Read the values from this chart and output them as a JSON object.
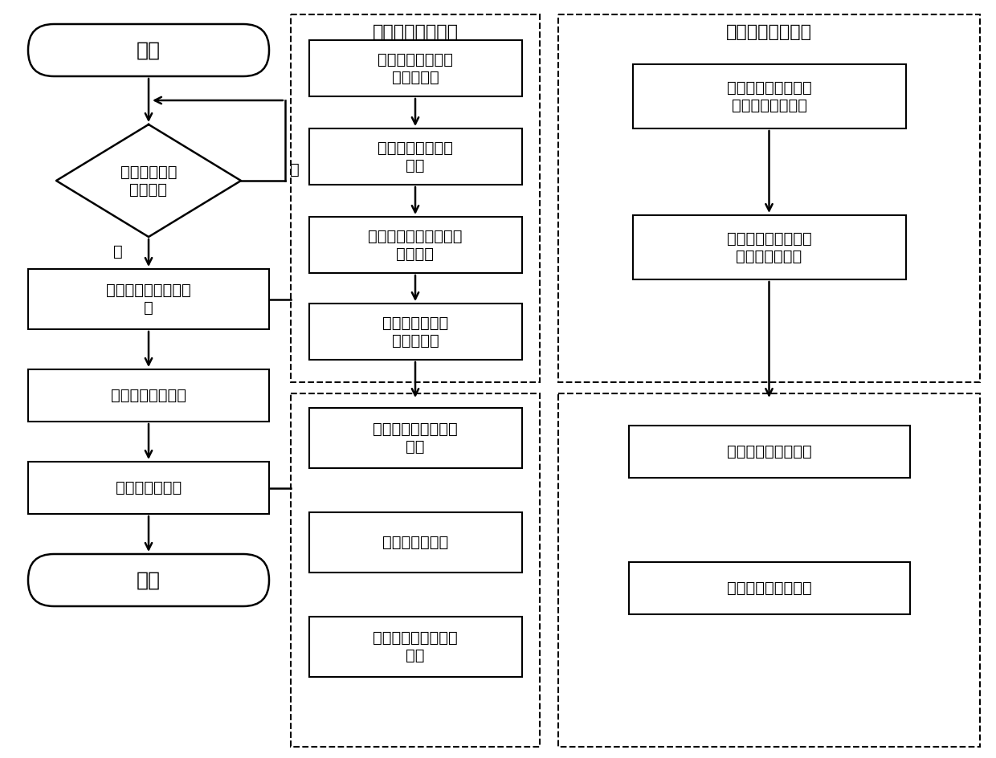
{
  "bg_color": "#ffffff",
  "left_flow": {
    "start_label": "开始",
    "diamond_label": "检查是否有刚\n下线产品",
    "box1_label": "读取数据进行分段判\n定",
    "box2_label": "给出分段判定等级",
    "box3_label": "分切意见和建议",
    "end_label": "结束",
    "no_label": "否",
    "yes_label": "是"
  },
  "middle_upper": {
    "dashed_title": "表检判定标准转换",
    "boxes": [
      "缺陷名称和质量结\n果统一标准",
      "缺陷严重程度等级\n量化",
      "确定不同用户、钢种的\n加权系数",
      "带权缺陷量与质\n量结果对应"
    ]
  },
  "middle_lower": {
    "boxes": [
      "表面判定规则等级对\n照表",
      "缺陷权重对照表",
      "缺陷量与质量结果对\n照表"
    ]
  },
  "right_upper": {
    "dashed_title": "过程判定标准转换",
    "boxes": [
      "规范过程参数控制点\n的名称和质量结果",
      "确定不同用户、钢种\n的过程参数范围"
    ]
  },
  "right_lower": {
    "boxes": [
      "过程参数判定规则表",
      "综合判定等级配置表"
    ]
  }
}
